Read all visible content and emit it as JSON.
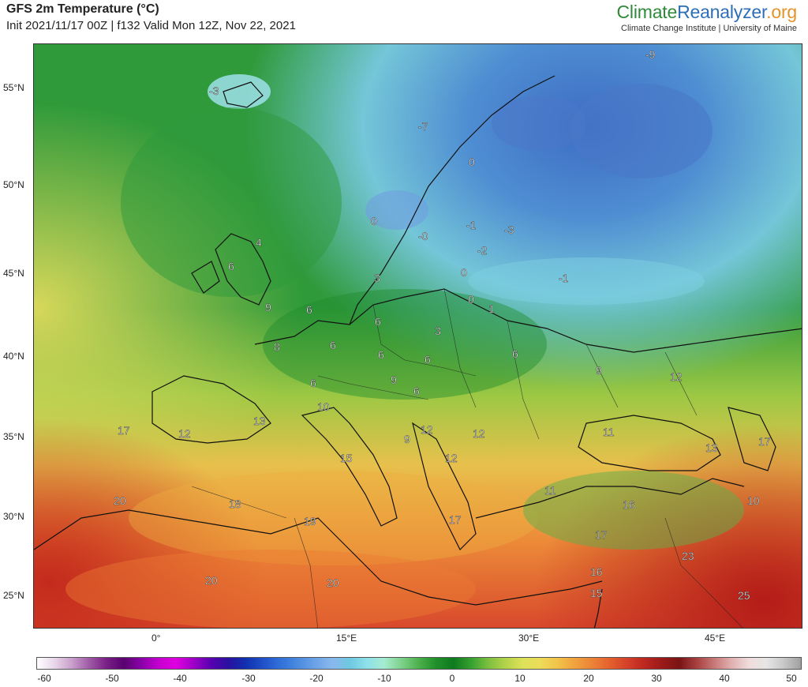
{
  "header": {
    "title": "GFS 2m Temperature (°C)",
    "subtitle": "Init 2021/11/17 00Z | f132 Valid Mon 12Z, Nov 22, 2021"
  },
  "brand": {
    "part1": "Climate",
    "part2": "Reanalyzer",
    "part3": ".org",
    "subtitle": "Climate Change Institute | University of Maine"
  },
  "axes": {
    "lat_ticks": [
      "55°N",
      "50°N",
      "45°N",
      "40°N",
      "35°N",
      "30°N",
      "25°N"
    ],
    "lon_ticks": [
      "0°",
      "15°E",
      "30°E",
      "45°E"
    ]
  },
  "colorbar": {
    "ticks": [
      "-60",
      "-50",
      "-40",
      "-30",
      "-20",
      "-10",
      "0",
      "10",
      "20",
      "30",
      "40",
      "50"
    ],
    "colors": [
      "#ffffff",
      "#e8d6ea",
      "#c9a0cc",
      "#a05aa6",
      "#7a1f86",
      "#5a0070",
      "#8a00a8",
      "#c400d0",
      "#e000e0",
      "#a000c8",
      "#5a00b0",
      "#2a10a0",
      "#1030b0",
      "#2050c8",
      "#3070d8",
      "#4a8ae0",
      "#6aa2e8",
      "#8ab8ee",
      "#6ec8e0",
      "#8ee0ea",
      "#a6ecd0",
      "#7ed08a",
      "#4cb04c",
      "#1f8f2a",
      "#0f7a1f",
      "#36a030",
      "#7cc040",
      "#b4d44a",
      "#dde25a",
      "#eedb5a",
      "#f2c24a",
      "#f0a23e",
      "#ec8236",
      "#e4602e",
      "#d4402a",
      "#bc2620",
      "#9a1a18",
      "#7a1414",
      "#a84040",
      "#c87878",
      "#e0b0b0",
      "#f0dcdc",
      "#e6e6e6",
      "#c8c8c8",
      "#a0a0a0"
    ]
  },
  "map_labels": [
    {
      "text": "-3"
    },
    {
      "text": "-9"
    },
    {
      "text": "-7"
    },
    {
      "text": "0"
    },
    {
      "text": "0"
    },
    {
      "text": "-0"
    },
    {
      "text": "-1"
    },
    {
      "text": "-3"
    },
    {
      "text": "-2"
    },
    {
      "text": "0"
    },
    {
      "text": "0"
    },
    {
      "text": "1"
    },
    {
      "text": "-1"
    },
    {
      "text": "4"
    },
    {
      "text": "6"
    },
    {
      "text": "3"
    },
    {
      "text": "9"
    },
    {
      "text": "6"
    },
    {
      "text": "6"
    },
    {
      "text": "8"
    },
    {
      "text": "6"
    },
    {
      "text": "3"
    },
    {
      "text": "6"
    },
    {
      "text": "6"
    },
    {
      "text": "6"
    },
    {
      "text": "6"
    },
    {
      "text": "9"
    },
    {
      "text": "6"
    },
    {
      "text": "9"
    },
    {
      "text": "12"
    },
    {
      "text": "10"
    },
    {
      "text": "13"
    },
    {
      "text": "9"
    },
    {
      "text": "12"
    },
    {
      "text": "12"
    },
    {
      "text": "11"
    },
    {
      "text": "13"
    },
    {
      "text": "17"
    },
    {
      "text": "17"
    },
    {
      "text": "12"
    },
    {
      "text": "15"
    },
    {
      "text": "12"
    },
    {
      "text": "20"
    },
    {
      "text": "18"
    },
    {
      "text": "19"
    },
    {
      "text": "11"
    },
    {
      "text": "16"
    },
    {
      "text": "10"
    },
    {
      "text": "17"
    },
    {
      "text": "17"
    },
    {
      "text": "16"
    },
    {
      "text": "23"
    },
    {
      "text": "20"
    },
    {
      "text": "20"
    },
    {
      "text": "15"
    },
    {
      "text": "25"
    }
  ]
}
